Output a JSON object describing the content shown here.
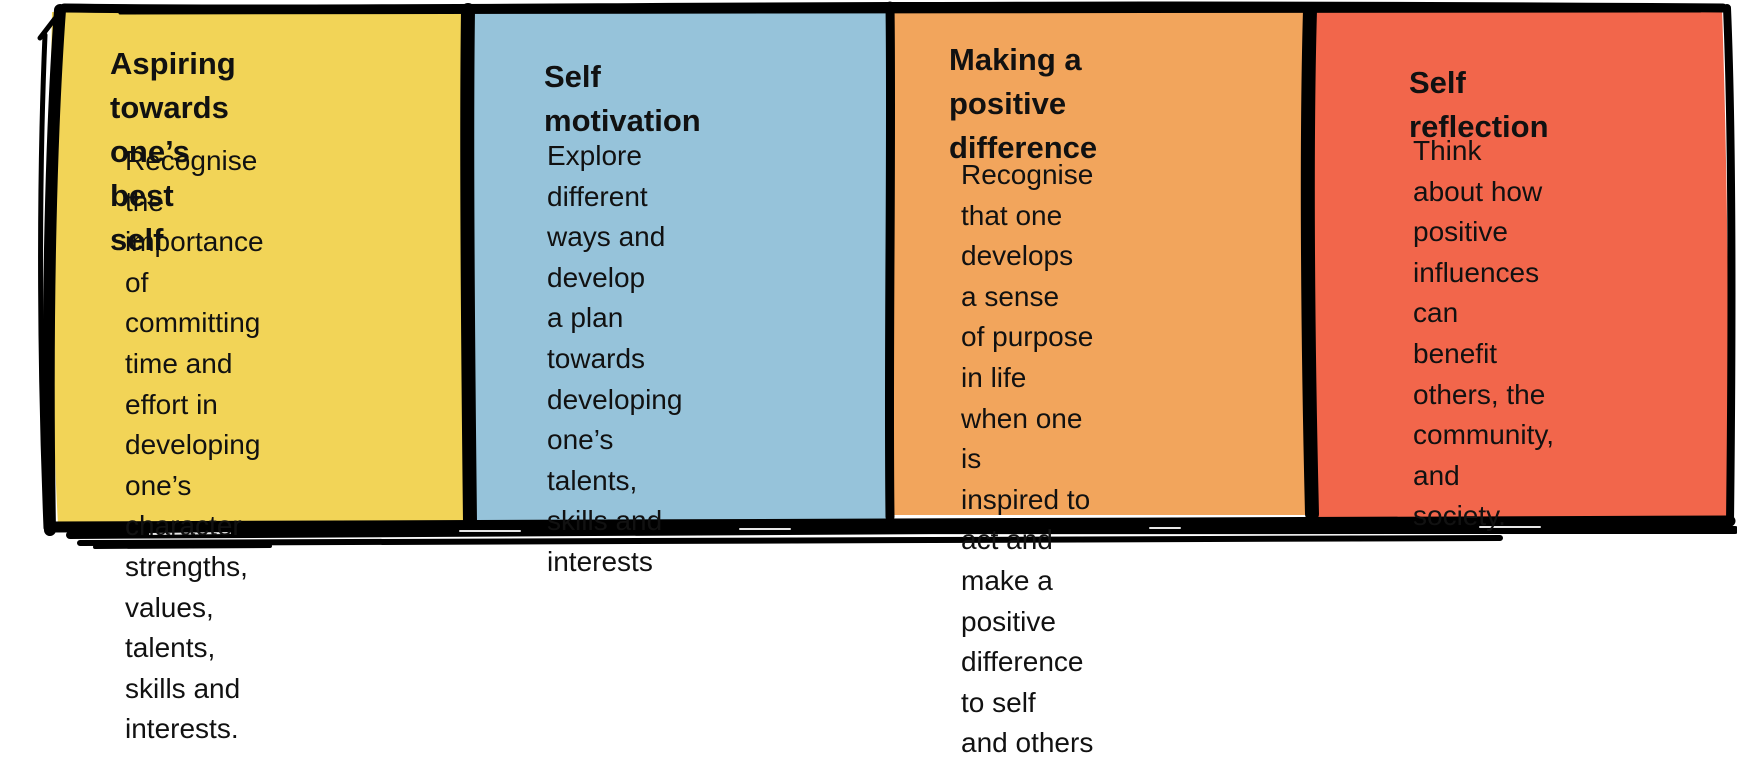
{
  "colors": {
    "panel_yellow": "#F2D457",
    "panel_blue": "#96C3DA",
    "panel_orange": "#F2A55C",
    "panel_red": "#F2664B",
    "border": "#000000",
    "text": "#111111"
  },
  "panels": [
    {
      "title": "Aspiring  towards\none’s best self",
      "body": "Recognise the\nimportance of\ncommitting time and\neffort in developing\none’s character\nstrengths, values,\ntalents, skills and\ninterests."
    },
    {
      "title": "Self motivation",
      "body": "Explore different\nways and develop\na plan towards\ndeveloping one’s\ntalents, skills and\ninterests"
    },
    {
      "title": "Making a positive\ndifference",
      "body": "Recognise that one\ndevelops a sense\nof purpose in life\nwhen one is\ninspired to act and\nmake a positive\ndifference to self\nand others"
    },
    {
      "title": "Self reflection",
      "body": "Think about how\npositive\ninfluences can\nbenefit others, the\ncommunity, and\nsociety."
    }
  ]
}
